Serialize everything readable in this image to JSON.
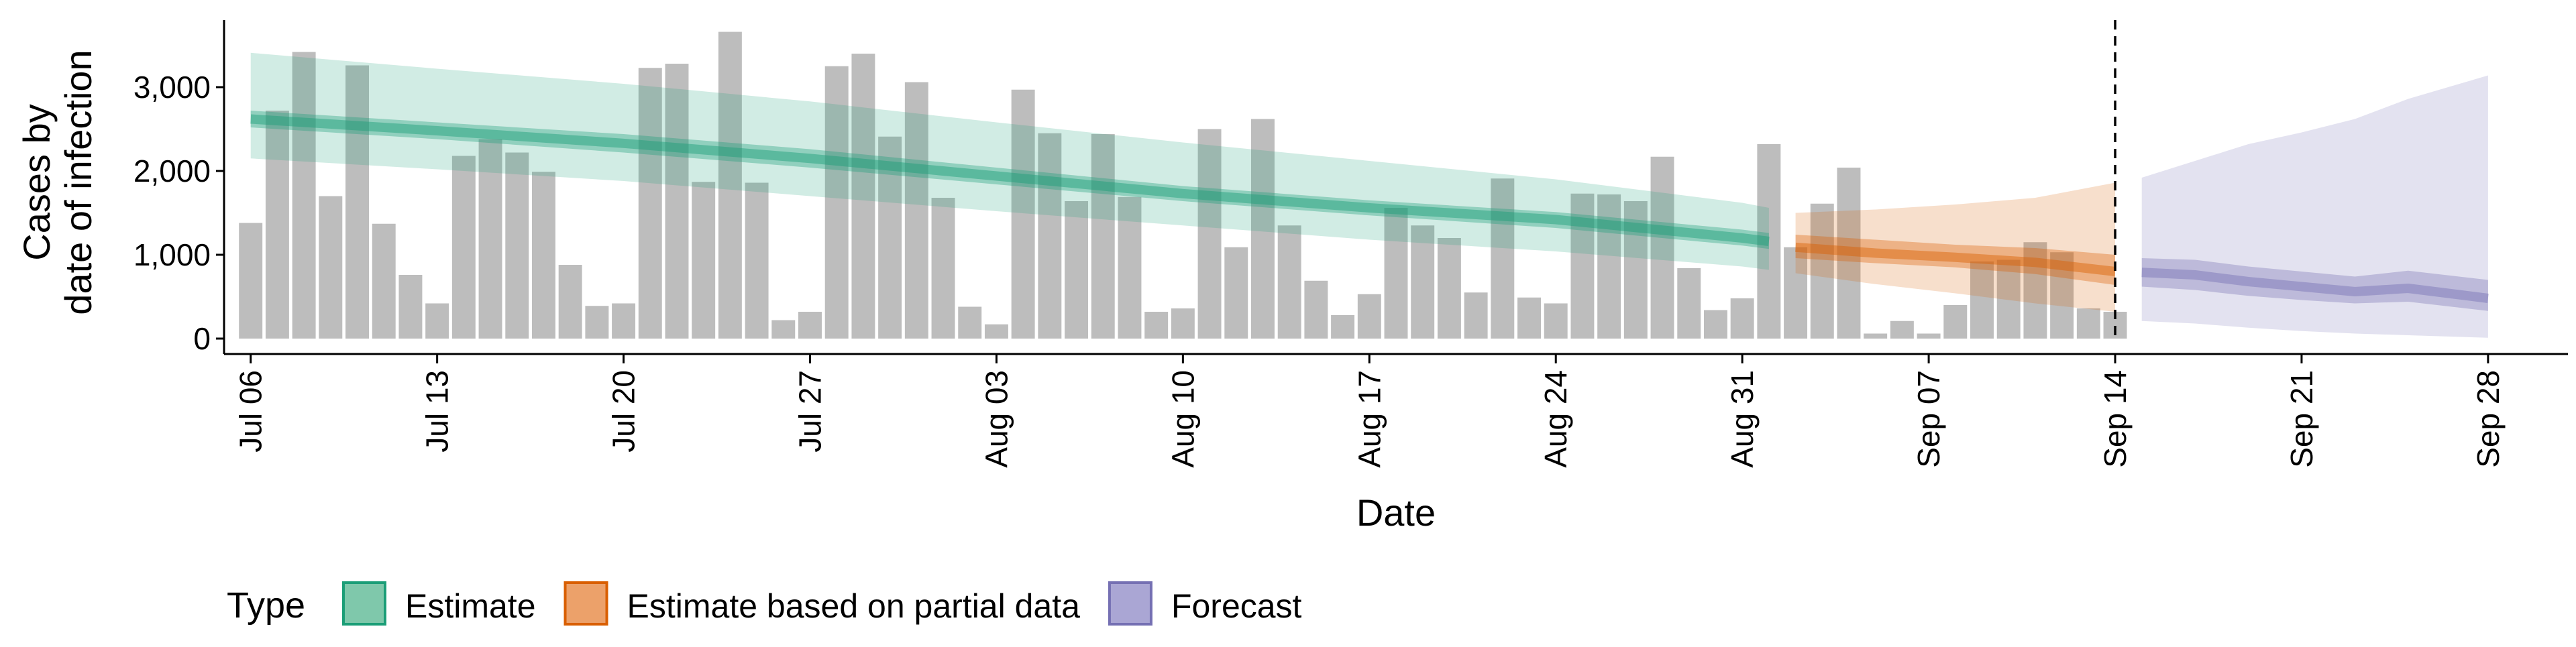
{
  "chart_data": {
    "type": "bar",
    "title": "",
    "xlabel": "Date",
    "ylabel": [
      "Cases by",
      "date of infection"
    ],
    "ylim": [
      0,
      3800
    ],
    "y_ticks": [
      0,
      1000,
      2000,
      3000
    ],
    "y_tick_labels": [
      "0",
      "1,000",
      "2,000",
      "3,000"
    ],
    "x_range": [
      "2020-07-05",
      "2020-10-01"
    ],
    "x_ticks": [
      "2020-07-06",
      "2020-07-13",
      "2020-07-20",
      "2020-07-27",
      "2020-08-03",
      "2020-08-10",
      "2020-08-17",
      "2020-08-24",
      "2020-08-31",
      "2020-09-07",
      "2020-09-14",
      "2020-09-21",
      "2020-09-28"
    ],
    "x_tick_labels": [
      "Jul 06",
      "Jul 13",
      "Jul 20",
      "Jul 27",
      "Aug 03",
      "Aug 10",
      "Aug 17",
      "Aug 24",
      "Aug 31",
      "Sep 07",
      "Sep 14",
      "Sep 21",
      "Sep 28"
    ],
    "grid": false,
    "vline": {
      "date": "2020-09-14",
      "style": "dashed"
    },
    "bars": {
      "color": "#bdbdbd",
      "dates_from": "2020-07-06",
      "values": [
        1380,
        2720,
        3420,
        1700,
        3260,
        1370,
        760,
        420,
        2180,
        2380,
        2220,
        1990,
        880,
        390,
        420,
        3230,
        3280,
        1870,
        3660,
        1860,
        220,
        320,
        3250,
        3400,
        2410,
        3060,
        1680,
        380,
        170,
        2970,
        2450,
        1640,
        2440,
        1690,
        320,
        360,
        2500,
        1090,
        2620,
        1350,
        690,
        280,
        530,
        1560,
        1350,
        1200,
        550,
        1910,
        490,
        420,
        1730,
        1720,
        1640,
        2170,
        840,
        340,
        480,
        2320,
        1090,
        1610,
        2040,
        60,
        210,
        60,
        400,
        920,
        940,
        1150,
        1030,
        360,
        320
      ]
    },
    "legend": {
      "title": "Type",
      "position": "bottom",
      "items": [
        {
          "label": "Estimate",
          "fill": "#7fc8ab",
          "stroke": "#1b9e77"
        },
        {
          "label": "Estimate based on partial data",
          "fill": "#eca16a",
          "stroke": "#d95f02"
        },
        {
          "label": "Forecast",
          "fill": "#aaa6d4",
          "stroke": "#7570b3"
        }
      ]
    },
    "series": [
      {
        "name": "Estimate",
        "color": "#1b9e77",
        "x": [
          "2020-07-06",
          "2020-07-13",
          "2020-07-20",
          "2020-07-27",
          "2020-08-03",
          "2020-08-10",
          "2020-08-17",
          "2020-08-24",
          "2020-08-31",
          "2020-09-01"
        ],
        "median": [
          2620,
          2480,
          2330,
          2150,
          1940,
          1730,
          1560,
          1420,
          1200,
          1160
        ],
        "lower_50": [
          2520,
          2380,
          2220,
          2040,
          1840,
          1640,
          1470,
          1320,
          1110,
          1070
        ],
        "upper_50": [
          2720,
          2580,
          2440,
          2260,
          2040,
          1820,
          1650,
          1510,
          1300,
          1260
        ],
        "lower_90": [
          2150,
          2020,
          1880,
          1700,
          1520,
          1350,
          1180,
          1040,
          860,
          820
        ],
        "upper_90": [
          3410,
          3220,
          3040,
          2830,
          2580,
          2340,
          2120,
          1900,
          1620,
          1560
        ]
      },
      {
        "name": "Estimate based on partial data",
        "color": "#d95f02",
        "x": [
          "2020-09-02",
          "2020-09-05",
          "2020-09-08",
          "2020-09-11",
          "2020-09-14"
        ],
        "median": [
          1090,
          1020,
          970,
          910,
          800
        ],
        "lower_50": [
          960,
          900,
          850,
          770,
          640
        ],
        "upper_50": [
          1240,
          1180,
          1120,
          1080,
          1000
        ],
        "lower_90": [
          780,
          650,
          540,
          420,
          320
        ],
        "upper_90": [
          1500,
          1540,
          1600,
          1680,
          1860
        ]
      },
      {
        "name": "Forecast",
        "color": "#7570b3",
        "x": [
          "2020-09-15",
          "2020-09-17",
          "2020-09-19",
          "2020-09-21",
          "2020-09-23",
          "2020-09-25",
          "2020-09-28"
        ],
        "median": [
          790,
          760,
          680,
          620,
          560,
          600,
          480
        ],
        "lower_50": [
          620,
          580,
          510,
          460,
          420,
          440,
          330
        ],
        "upper_50": [
          960,
          940,
          860,
          800,
          740,
          810,
          700
        ],
        "lower_90": [
          210,
          180,
          130,
          90,
          60,
          40,
          10
        ],
        "upper_90": [
          1920,
          2120,
          2320,
          2460,
          2620,
          2860,
          3140
        ]
      }
    ]
  }
}
